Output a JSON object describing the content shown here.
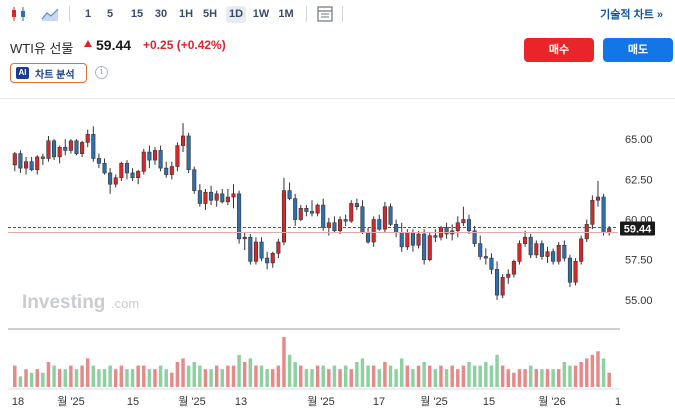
{
  "toolbar": {
    "timeframes": [
      "1",
      "5",
      "15",
      "30",
      "1H",
      "5H",
      "1D",
      "1W",
      "1M"
    ],
    "active_timeframe": "1D",
    "technical_link": "기술적 차트 »"
  },
  "instrument": {
    "title": "WTI유 선물",
    "price": "59.44",
    "change": "+0.25 (+0.42%)"
  },
  "actions": {
    "buy_label": "매수",
    "sell_label": "매도",
    "ai_badge": "AI",
    "ai_label": "차트 분석",
    "info_glyph": "i"
  },
  "watermark": {
    "brand": "Investing",
    "suffix": ".com"
  },
  "colors": {
    "up": "#d6272c",
    "down": "#2f6fae",
    "vol_up": "#e58a8a",
    "vol_down": "#8fd0a0",
    "last_line": "#e3aaaa",
    "accent_buy": "#e8262a",
    "accent_sell": "#1376e6"
  },
  "chart_data": {
    "type": "candlestick",
    "instrument": "WTI유 선물",
    "interval": "1D",
    "y_ticks": [
      "65.00",
      "62.50",
      "60.00",
      "57.50",
      "55.00"
    ],
    "ylim": [
      53.5,
      67.5
    ],
    "last_price_label": "59.44",
    "x_ticks": [
      "18",
      "월 '25",
      "15",
      "월 '25",
      "13",
      "월 '25",
      "17",
      "월 '25",
      "15",
      "월 '26",
      "1"
    ],
    "grid": false,
    "ohlc": [
      [
        63.4,
        64.2,
        63.0,
        64.1
      ],
      [
        64.1,
        64.3,
        62.9,
        63.2
      ],
      [
        63.2,
        63.9,
        62.8,
        63.6
      ],
      [
        63.6,
        63.9,
        63.0,
        63.1
      ],
      [
        63.1,
        64.0,
        62.8,
        63.9
      ],
      [
        63.9,
        64.1,
        63.4,
        63.8
      ],
      [
        63.8,
        65.2,
        63.6,
        64.9
      ],
      [
        64.9,
        65.0,
        63.7,
        63.9
      ],
      [
        63.9,
        64.6,
        63.5,
        64.5
      ],
      [
        64.5,
        65.0,
        64.0,
        64.3
      ],
      [
        64.3,
        65.0,
        64.1,
        64.9
      ],
      [
        64.9,
        65.0,
        64.0,
        64.1
      ],
      [
        64.1,
        64.9,
        63.9,
        64.8
      ],
      [
        64.8,
        65.6,
        64.5,
        65.3
      ],
      [
        65.3,
        65.8,
        63.6,
        63.8
      ],
      [
        63.8,
        64.1,
        63.2,
        63.5
      ],
      [
        63.5,
        63.8,
        62.8,
        62.9
      ],
      [
        62.9,
        63.2,
        61.6,
        62.2
      ],
      [
        62.2,
        62.8,
        62.0,
        62.6
      ],
      [
        62.6,
        63.6,
        62.4,
        63.5
      ],
      [
        63.5,
        63.7,
        62.5,
        62.9
      ],
      [
        62.9,
        63.2,
        62.4,
        62.6
      ],
      [
        62.6,
        63.1,
        62.2,
        63.0
      ],
      [
        63.0,
        64.4,
        62.8,
        64.2
      ],
      [
        64.2,
        64.6,
        63.2,
        63.7
      ],
      [
        63.7,
        64.5,
        63.4,
        64.3
      ],
      [
        64.3,
        64.6,
        63.0,
        63.2
      ],
      [
        63.2,
        63.6,
        62.6,
        62.8
      ],
      [
        62.8,
        63.6,
        62.5,
        63.3
      ],
      [
        63.3,
        64.8,
        63.0,
        64.6
      ],
      [
        64.6,
        66.0,
        64.2,
        65.2
      ],
      [
        65.2,
        65.4,
        62.9,
        63.1
      ],
      [
        63.1,
        63.3,
        61.6,
        61.8
      ],
      [
        61.8,
        62.2,
        60.8,
        61.0
      ],
      [
        61.0,
        61.9,
        60.6,
        61.7
      ],
      [
        61.7,
        62.1,
        60.9,
        61.2
      ],
      [
        61.2,
        61.8,
        60.8,
        61.6
      ],
      [
        61.6,
        61.9,
        61.0,
        61.1
      ],
      [
        61.1,
        61.9,
        60.9,
        61.4
      ],
      [
        61.4,
        62.2,
        60.7,
        61.6
      ],
      [
        61.6,
        61.8,
        58.5,
        58.8
      ],
      [
        58.8,
        59.2,
        58.1,
        58.9
      ],
      [
        58.9,
        59.1,
        57.2,
        57.4
      ],
      [
        57.4,
        58.9,
        57.2,
        58.6
      ],
      [
        58.6,
        58.9,
        57.4,
        57.6
      ],
      [
        57.6,
        58.0,
        56.9,
        57.3
      ],
      [
        57.3,
        58.0,
        57.0,
        57.9
      ],
      [
        57.9,
        58.8,
        57.6,
        58.6
      ],
      [
        58.6,
        62.6,
        58.4,
        61.8
      ],
      [
        61.8,
        62.3,
        61.2,
        61.3
      ],
      [
        61.3,
        61.6,
        59.6,
        60.0
      ],
      [
        60.0,
        60.9,
        59.9,
        60.7
      ],
      [
        60.7,
        60.9,
        60.2,
        60.5
      ],
      [
        60.5,
        61.2,
        60.2,
        60.4
      ],
      [
        60.4,
        61.0,
        60.2,
        60.9
      ],
      [
        60.9,
        61.3,
        59.3,
        59.5
      ],
      [
        59.5,
        60.1,
        59.0,
        59.8
      ],
      [
        59.8,
        60.2,
        59.2,
        59.3
      ],
      [
        59.3,
        60.2,
        59.1,
        60.0
      ],
      [
        60.0,
        60.3,
        59.6,
        59.9
      ],
      [
        59.9,
        61.2,
        59.8,
        61.0
      ],
      [
        61.0,
        61.3,
        60.6,
        60.8
      ],
      [
        60.8,
        61.2,
        59.1,
        59.2
      ],
      [
        59.2,
        59.5,
        58.5,
        58.6
      ],
      [
        58.6,
        60.2,
        58.3,
        60.0
      ],
      [
        60.0,
        60.3,
        59.3,
        59.4
      ],
      [
        59.4,
        61.1,
        59.2,
        60.8
      ],
      [
        60.8,
        61.0,
        59.6,
        59.7
      ],
      [
        59.7,
        60.0,
        58.9,
        59.2
      ],
      [
        59.2,
        59.8,
        58.0,
        58.3
      ],
      [
        58.3,
        59.4,
        58.1,
        59.2
      ],
      [
        59.2,
        59.4,
        58.0,
        58.4
      ],
      [
        58.4,
        59.3,
        58.2,
        59.1
      ],
      [
        59.1,
        59.4,
        57.2,
        57.5
      ],
      [
        57.5,
        59.2,
        57.4,
        59.0
      ],
      [
        59.0,
        59.4,
        58.6,
        58.9
      ],
      [
        58.9,
        59.6,
        58.7,
        59.5
      ],
      [
        59.5,
        59.8,
        58.8,
        59.1
      ],
      [
        59.1,
        59.7,
        58.7,
        59.3
      ],
      [
        59.3,
        60.2,
        58.9,
        59.8
      ],
      [
        59.8,
        60.8,
        59.6,
        60.0
      ],
      [
        60.0,
        60.3,
        59.1,
        59.3
      ],
      [
        59.3,
        59.6,
        58.3,
        58.5
      ],
      [
        58.5,
        59.0,
        57.5,
        57.7
      ],
      [
        57.7,
        58.2,
        57.2,
        57.6
      ],
      [
        57.6,
        57.9,
        56.6,
        56.9
      ],
      [
        56.9,
        57.4,
        55.0,
        55.3
      ],
      [
        55.3,
        56.6,
        55.1,
        56.4
      ],
      [
        56.4,
        56.9,
        56.0,
        56.6
      ],
      [
        56.6,
        57.5,
        56.4,
        57.4
      ],
      [
        57.4,
        58.7,
        57.2,
        58.5
      ],
      [
        58.5,
        59.3,
        58.3,
        58.9
      ],
      [
        58.9,
        59.1,
        57.6,
        57.8
      ],
      [
        57.8,
        58.7,
        57.6,
        58.5
      ],
      [
        58.5,
        58.7,
        57.5,
        57.7
      ],
      [
        57.7,
        58.3,
        57.3,
        58.0
      ],
      [
        58.0,
        58.2,
        57.2,
        57.4
      ],
      [
        57.4,
        58.6,
        57.2,
        58.4
      ],
      [
        58.4,
        58.7,
        57.4,
        57.6
      ],
      [
        57.6,
        57.8,
        55.8,
        56.1
      ],
      [
        56.1,
        57.6,
        55.9,
        57.4
      ],
      [
        57.4,
        59.0,
        57.2,
        58.8
      ],
      [
        58.8,
        60.0,
        58.6,
        59.7
      ],
      [
        59.7,
        61.5,
        59.4,
        61.2
      ],
      [
        61.2,
        62.4,
        60.8,
        61.4
      ],
      [
        61.4,
        61.6,
        59.0,
        59.19
      ],
      [
        59.19,
        59.6,
        59.0,
        59.44
      ]
    ],
    "volume": [
      6,
      3,
      5,
      4,
      5,
      4,
      7,
      6,
      5,
      5,
      6,
      5,
      6,
      8,
      6,
      5,
      5,
      6,
      5,
      6,
      5,
      5,
      6,
      6,
      5,
      5,
      6,
      5,
      4,
      7,
      8,
      6,
      7,
      6,
      5,
      5,
      6,
      5,
      6,
      6,
      9,
      7,
      8,
      6,
      6,
      5,
      5,
      6,
      14,
      9,
      7,
      6,
      5,
      5,
      6,
      6,
      5,
      6,
      5,
      6,
      5,
      7,
      8,
      6,
      6,
      5,
      7,
      6,
      5,
      8,
      6,
      5,
      6,
      7,
      6,
      5,
      6,
      5,
      6,
      5,
      6,
      7,
      6,
      6,
      7,
      6,
      9,
      6,
      5,
      4,
      5,
      5,
      6,
      5,
      5,
      5,
      5,
      5,
      7,
      6,
      6,
      7,
      8,
      9,
      10,
      8,
      4
    ]
  }
}
